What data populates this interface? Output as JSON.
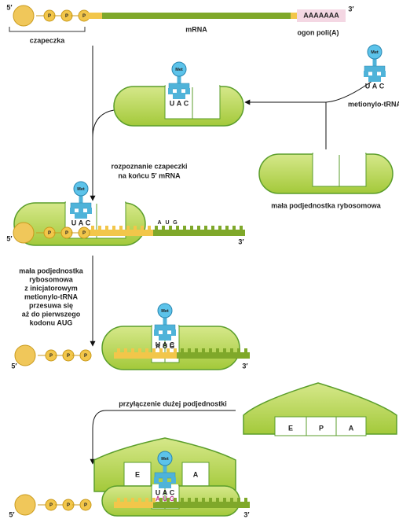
{
  "mrna": {
    "five_prime": "5′",
    "three_prime": "3′",
    "phosphate": "P",
    "poly_a": "AAAAAAA",
    "label": "mRNA",
    "cap_label": "czapeczka",
    "tail_label": "ogon poli(A)",
    "codon": [
      "A",
      "U",
      "G"
    ]
  },
  "trna": {
    "amino_acid": "Met",
    "anticodon": [
      "U",
      "A",
      "C"
    ],
    "label": "metionylo-tRNA"
  },
  "small_subunit_label": "mała podjednostka rybosomowa",
  "steps": [
    {
      "lines": [
        "rozpoznanie czapeczki",
        "na końcu 5′ mRNA"
      ]
    },
    {
      "lines": [
        "mała podjednostka",
        "rybosomowa",
        "z inicjatorowym",
        "metionylo-tRNA",
        "przesuwa się",
        "aż do pierwszego",
        "kodonu AUG"
      ]
    },
    {
      "lines": [
        "przyłączenie dużej podjednostki"
      ]
    }
  ],
  "large_subunit_sites": [
    "E",
    "P",
    "A"
  ]
}
